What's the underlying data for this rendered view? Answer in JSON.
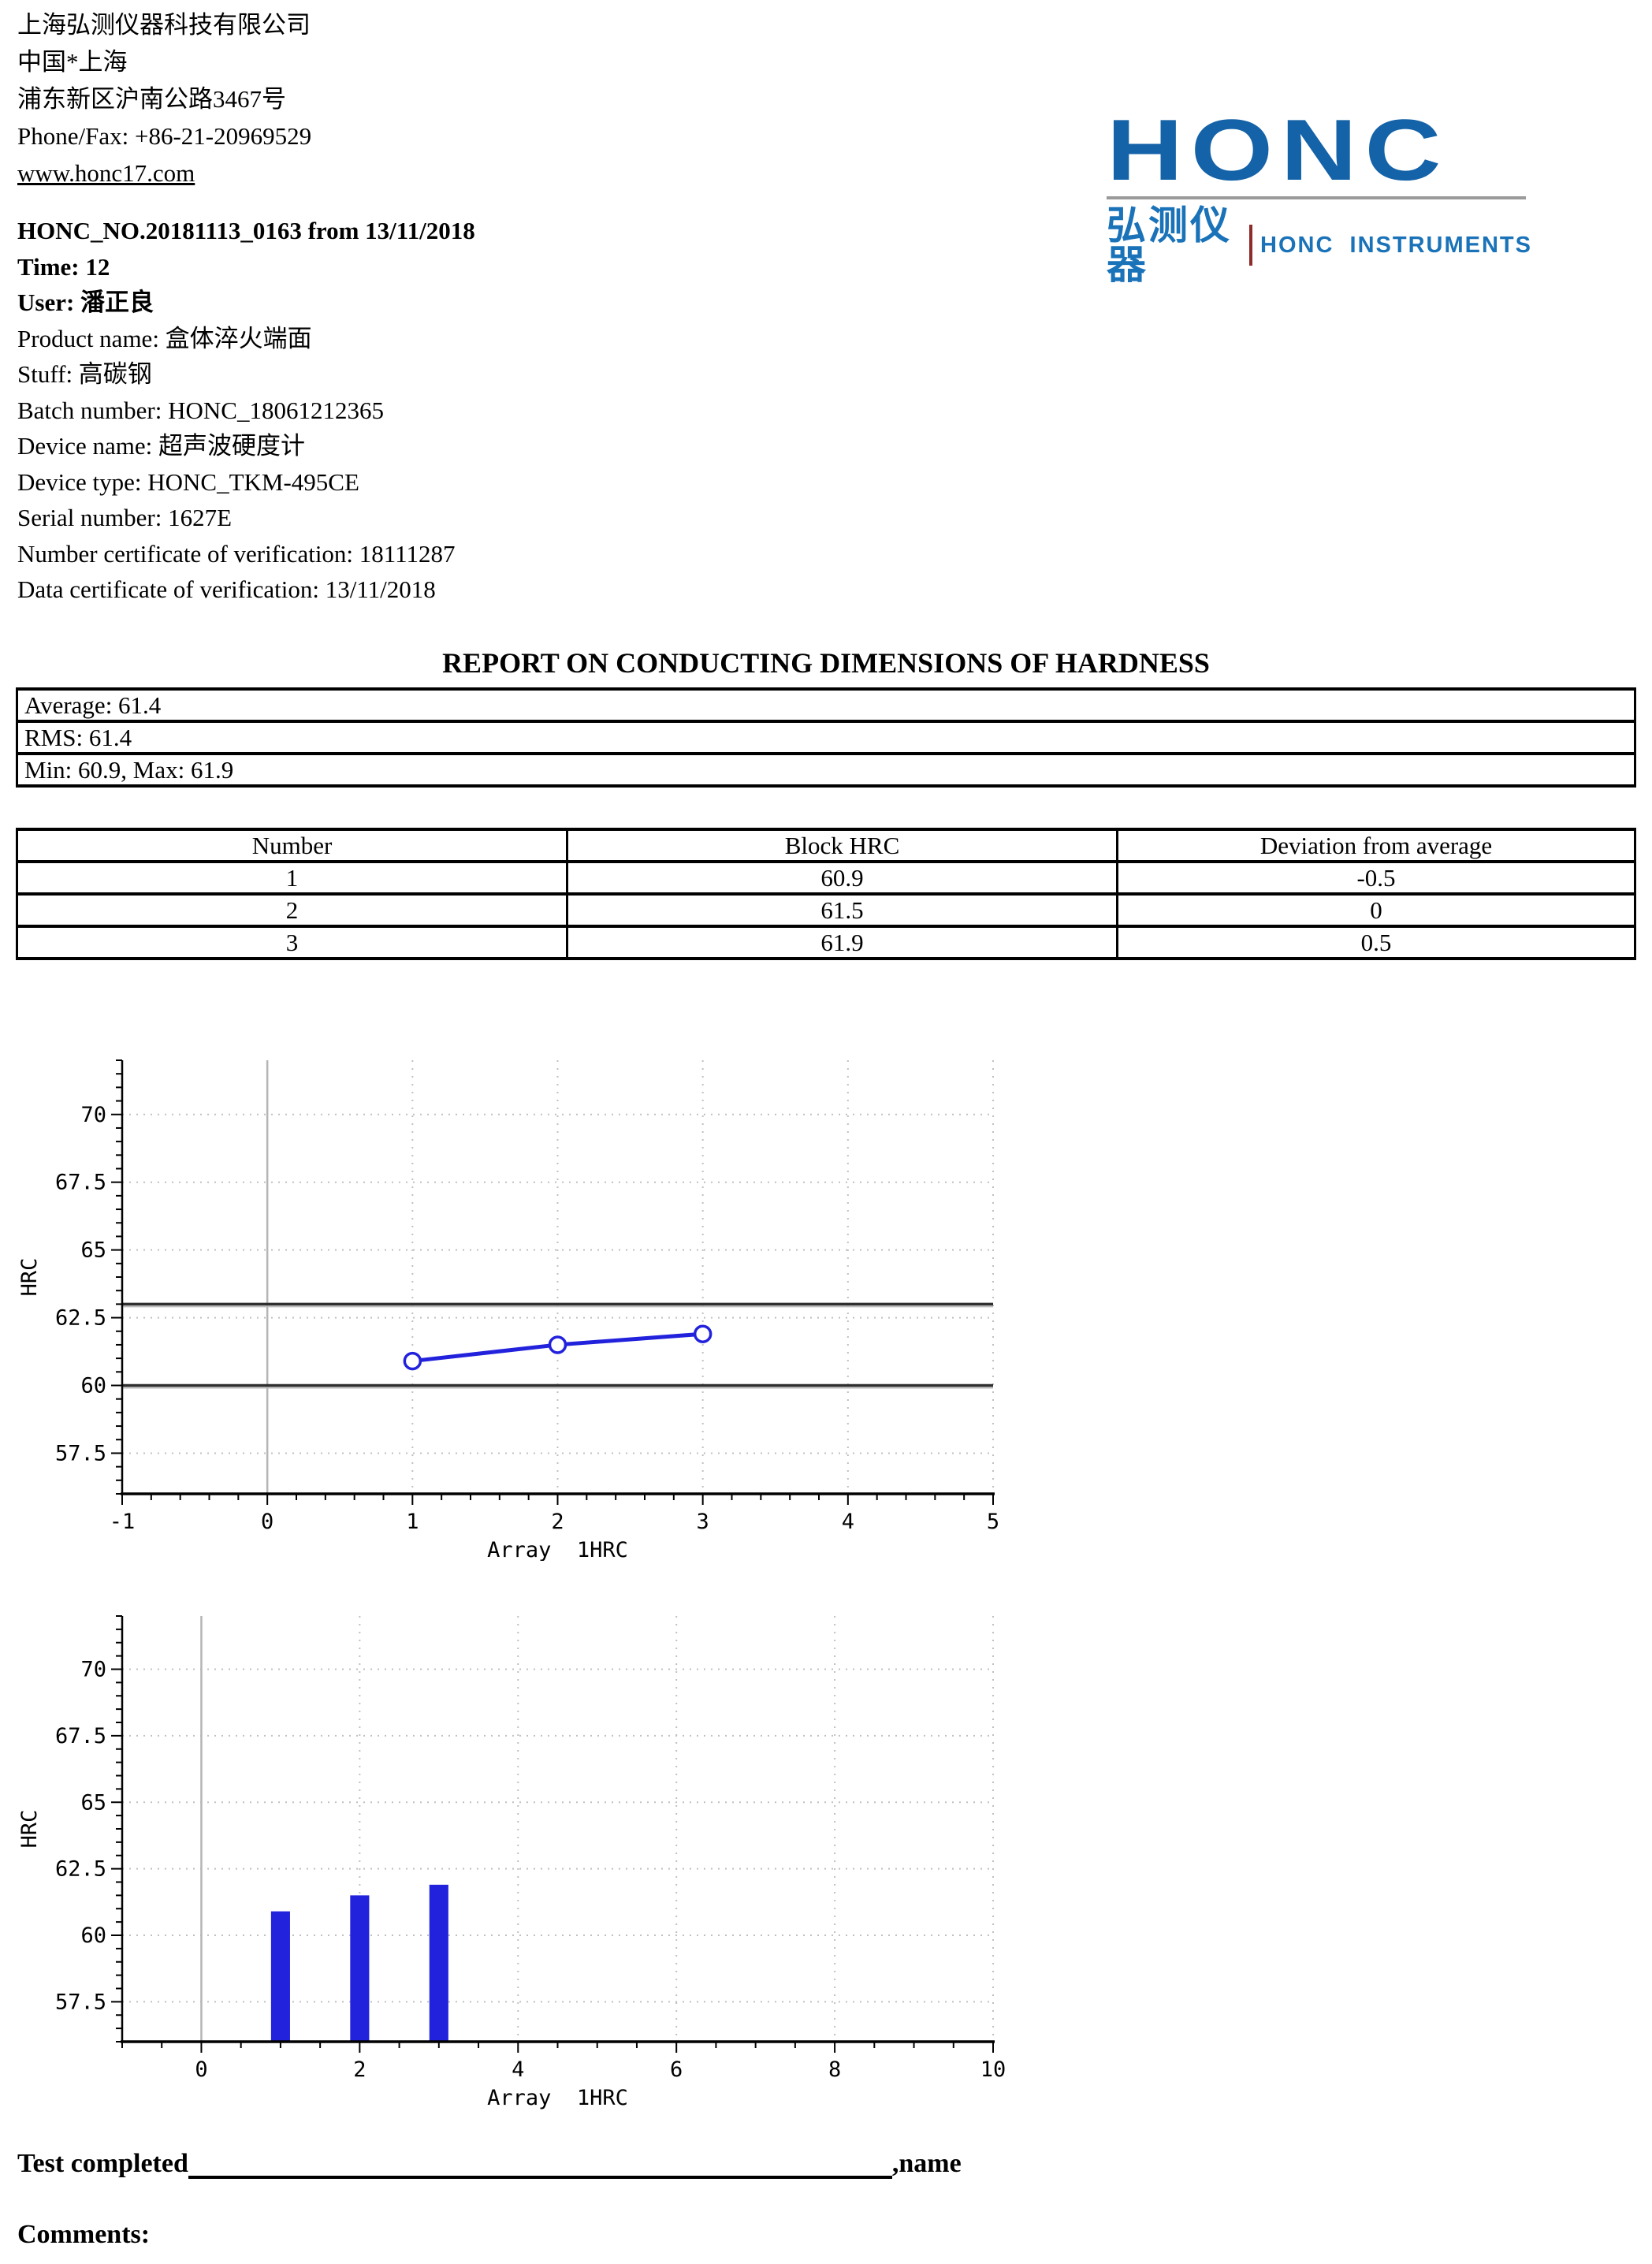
{
  "company": {
    "name": "上海弘测仪器科技有限公司",
    "location": "中国*上海",
    "address": "浦东新区沪南公路3467号",
    "phone_fax": "Phone/Fax: +86-21-20969529",
    "website": "www.honc17.com"
  },
  "logo": {
    "wordmark": "HONC",
    "brand_cn": "弘测仪器",
    "brand_sub": "HONC  INSTRUMENTS",
    "wordmark_color": "#1462a8",
    "cn_color": "#1a72b8",
    "sub_color": "#1a72b8",
    "divider_color": "#9a9a9a",
    "separator_color": "#8f2b2b"
  },
  "report_meta": {
    "report_no": "HONC_NO.20181113_0163 from 13/11/2018",
    "time": "Time: 12",
    "user": "User: 潘正良",
    "product_name": "Product name: 盒体淬火端面",
    "stuff": "Stuff: 高碳钢",
    "batch_number": "Batch number: HONC_18061212365",
    "device_name": "Device name: 超声波硬度计",
    "device_type": "Device type: HONC_TKM-495CE",
    "serial_number": "Serial number: 1627E",
    "cert_number": "Number certificate of verification: 18111287",
    "cert_date": "Data certificate of verification: 13/11/2018"
  },
  "report_title": "REPORT ON CONDUCTING DIMENSIONS OF HARDNESS",
  "summary": {
    "average": "Average: 61.4",
    "rms": "RMS: 61.4",
    "min_max": "Min: 60.9, Max: 61.9"
  },
  "results_table": {
    "headers": [
      "Number",
      "Block HRC",
      "Deviation from average"
    ],
    "rows": [
      [
        "1",
        "60.9",
        "-0.5"
      ],
      [
        "2",
        "61.5",
        "0"
      ],
      [
        "3",
        "61.9",
        "0.5"
      ]
    ]
  },
  "chart_data": [
    {
      "type": "line",
      "title": "",
      "xlabel": "Array  1HRC",
      "ylabel": "HRC",
      "x": [
        1,
        2,
        3
      ],
      "y": [
        60.9,
        61.5,
        61.9
      ],
      "xlim": [
        -1,
        5
      ],
      "ylim": [
        56,
        72
      ],
      "x_major_ticks": [
        -1,
        0,
        1,
        2,
        3,
        4,
        5
      ],
      "x_minor_step": 0.2,
      "y_major_ticks": [
        57.5,
        60,
        62.5,
        65,
        67.5,
        70
      ],
      "y_minor_step": 0.5,
      "tolerance_lines": [
        60,
        63
      ],
      "marker": "open-circle",
      "grid": true,
      "legend": "none",
      "colors": {
        "series": "#2222dd",
        "grid": "#c0c0c0",
        "zero_axis": "#b5b5b5",
        "tolerance": "#2f2f2f",
        "tolerance_shadow": "#bbbbbb",
        "axis": "#000000"
      }
    },
    {
      "type": "bar",
      "title": "",
      "xlabel": "Array  1HRC",
      "ylabel": "HRC",
      "x": [
        1,
        2,
        3
      ],
      "y": [
        60.9,
        61.5,
        61.9
      ],
      "xlim": [
        -1,
        10
      ],
      "ylim": [
        56,
        72
      ],
      "x_major_ticks": [
        0,
        2,
        4,
        6,
        8,
        10
      ],
      "x_minor_step": 0.5,
      "y_major_ticks": [
        57.5,
        60,
        62.5,
        65,
        67.5,
        70
      ],
      "y_minor_step": 0.5,
      "bar_width": 0.24,
      "grid": true,
      "legend": "none",
      "colors": {
        "series": "#2222dd",
        "grid": "#c0c0c0",
        "zero_axis": "#b5b5b5",
        "axis": "#000000"
      }
    }
  ],
  "signature": {
    "label": "Test completed",
    "suffix": ",name"
  },
  "comments_label": "Comments:"
}
